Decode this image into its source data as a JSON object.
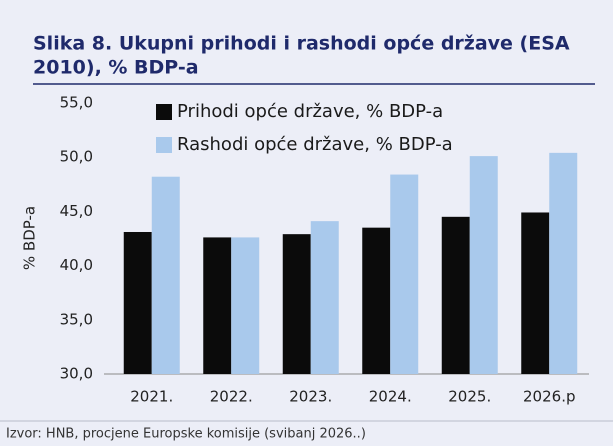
{
  "chart_data": {
    "type": "bar",
    "title_lines": [
      "Slika 8. Ukupni prihodi i rashodi opće države (ESA",
      "2010), % BDP-a"
    ],
    "y_label": "% BDP-a",
    "categories": [
      "2021.",
      "2022.",
      "2023.",
      "2024.",
      "2025.",
      "2026.p"
    ],
    "series": [
      {
        "name": "Prihodi opće države, % BDP-a",
        "color": "#0b0b0b",
        "values": [
          43.1,
          42.6,
          42.9,
          43.5,
          44.5,
          44.9
        ]
      },
      {
        "name": "Rashodi opće države, % BDP-a",
        "color": "#a9c9ec",
        "values": [
          48.2,
          42.6,
          44.1,
          48.4,
          50.1,
          50.4
        ]
      }
    ],
    "ylim": [
      30,
      55
    ],
    "yticks": [
      {
        "value": 30,
        "label": "30,0"
      },
      {
        "value": 35,
        "label": "35,0"
      },
      {
        "value": 40,
        "label": "40,0"
      },
      {
        "value": 45,
        "label": "45,0"
      },
      {
        "value": 50,
        "label": "50,0"
      },
      {
        "value": 55,
        "label": "55,0"
      }
    ],
    "grid": false,
    "legend": "top-left",
    "source": "Izvor: HNB, procjene Europske komisije (svibanj 2026..)"
  }
}
